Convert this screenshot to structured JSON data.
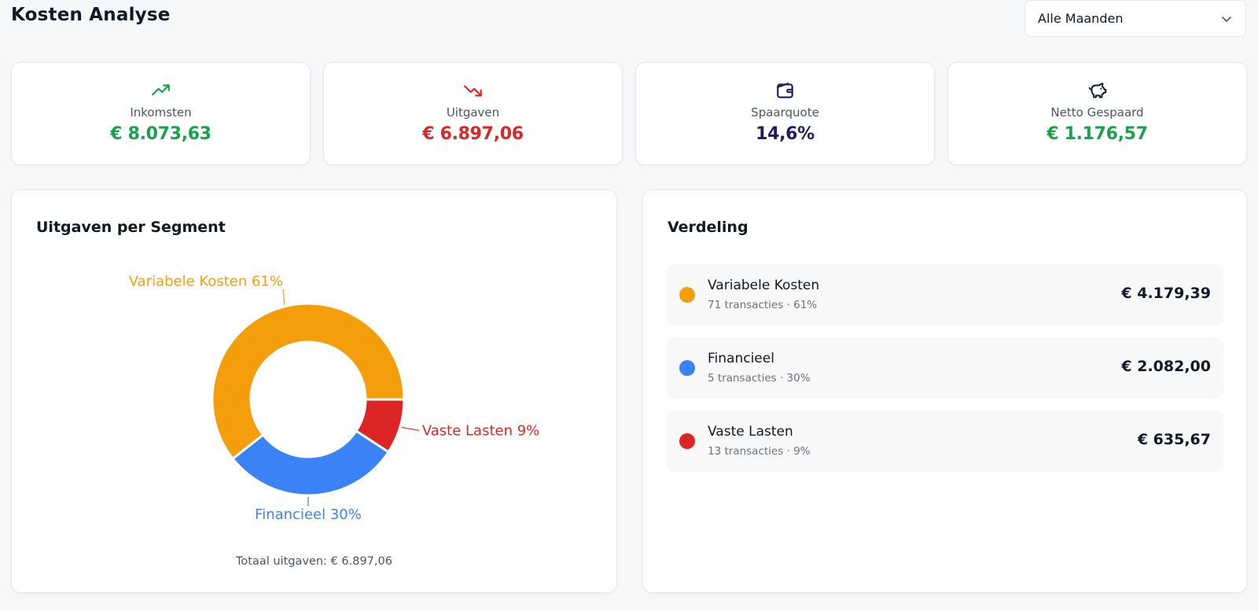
{
  "page": {
    "title": "Kosten Analyse"
  },
  "filter": {
    "selected": "Alle Maanden"
  },
  "stats": [
    {
      "label": "Inkomsten",
      "value": "€ 8.073,63",
      "icon": "trending-up-icon",
      "color": "#16a34a"
    },
    {
      "label": "Uitgaven",
      "value": "€ 6.897,06",
      "icon": "trending-down-icon",
      "color": "#dc2626"
    },
    {
      "label": "Spaarquote",
      "value": "14,6%",
      "icon": "wallet-icon",
      "color": "#1e1b6b"
    },
    {
      "label": "Netto Gespaard",
      "value": "€ 1.176,57",
      "icon": "piggy-bank-icon",
      "color": "#16a34a"
    }
  ],
  "segment_chart": {
    "title": "Uitgaven per Segment",
    "total_label": "Totaal uitgaven: € 6.897,06"
  },
  "chart_data": {
    "type": "pie",
    "categories": [
      "Variabele Kosten",
      "Financieel",
      "Vaste Lasten"
    ],
    "values": [
      4179.39,
      2082.0,
      635.67
    ],
    "data_labels": [
      "Variabele Kosten 61%",
      "Financieel 30%",
      "Vaste Lasten 9%"
    ],
    "colors": [
      "#f59e0b",
      "#3b82f6",
      "#dc2626"
    ]
  },
  "distribution": {
    "title": "Verdeling",
    "items": [
      {
        "name": "Variabele Kosten",
        "sub": "71 transacties · 61%",
        "amount": "€ 4.179,39",
        "color": "#f59e0b"
      },
      {
        "name": "Financieel",
        "sub": "5 transacties · 30%",
        "amount": "€ 2.082,00",
        "color": "#3b82f6"
      },
      {
        "name": "Vaste Lasten",
        "sub": "13 transacties · 9%",
        "amount": "€ 635,67",
        "color": "#dc2626"
      }
    ]
  }
}
